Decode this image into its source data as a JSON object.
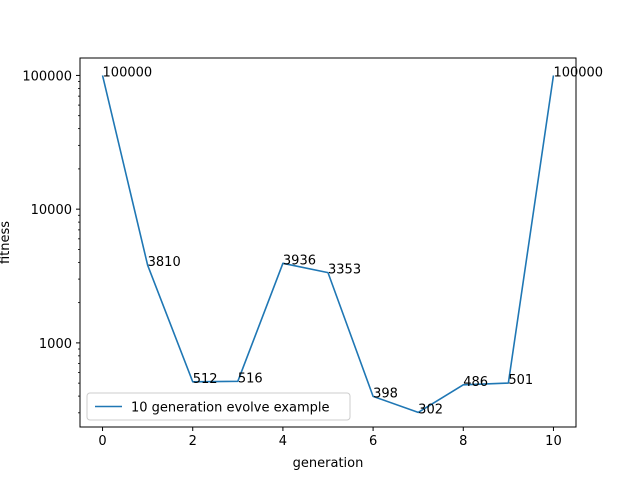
{
  "chart_data": {
    "type": "line",
    "title": "",
    "xlabel": "generation",
    "ylabel": "fitness",
    "yscale": "log",
    "xlim": [
      -0.5,
      10.5
    ],
    "ylim": [
      235,
      135000
    ],
    "x": [
      0,
      1,
      2,
      3,
      4,
      5,
      6,
      7,
      8,
      9,
      10
    ],
    "xticks": [
      0,
      2,
      4,
      6,
      8,
      10
    ],
    "xtick_labels": [
      "0",
      "2",
      "4",
      "6",
      "8",
      "10"
    ],
    "yticks": [
      1000,
      10000,
      100000
    ],
    "ytick_labels": [
      "1000",
      "10000",
      "100000"
    ],
    "series": [
      {
        "name": "10 generation evolve example",
        "color": "#1f77b4",
        "values": [
          100000,
          3810,
          512,
          516,
          3936,
          3353,
          398,
          302,
          486,
          501,
          100000
        ],
        "value_labels": [
          "100000",
          "3810",
          "512",
          "516",
          "3936",
          "3353",
          "398",
          "302",
          "486",
          "501",
          "100000"
        ]
      }
    ],
    "legend": {
      "position": "lower-left"
    },
    "grid": false
  }
}
